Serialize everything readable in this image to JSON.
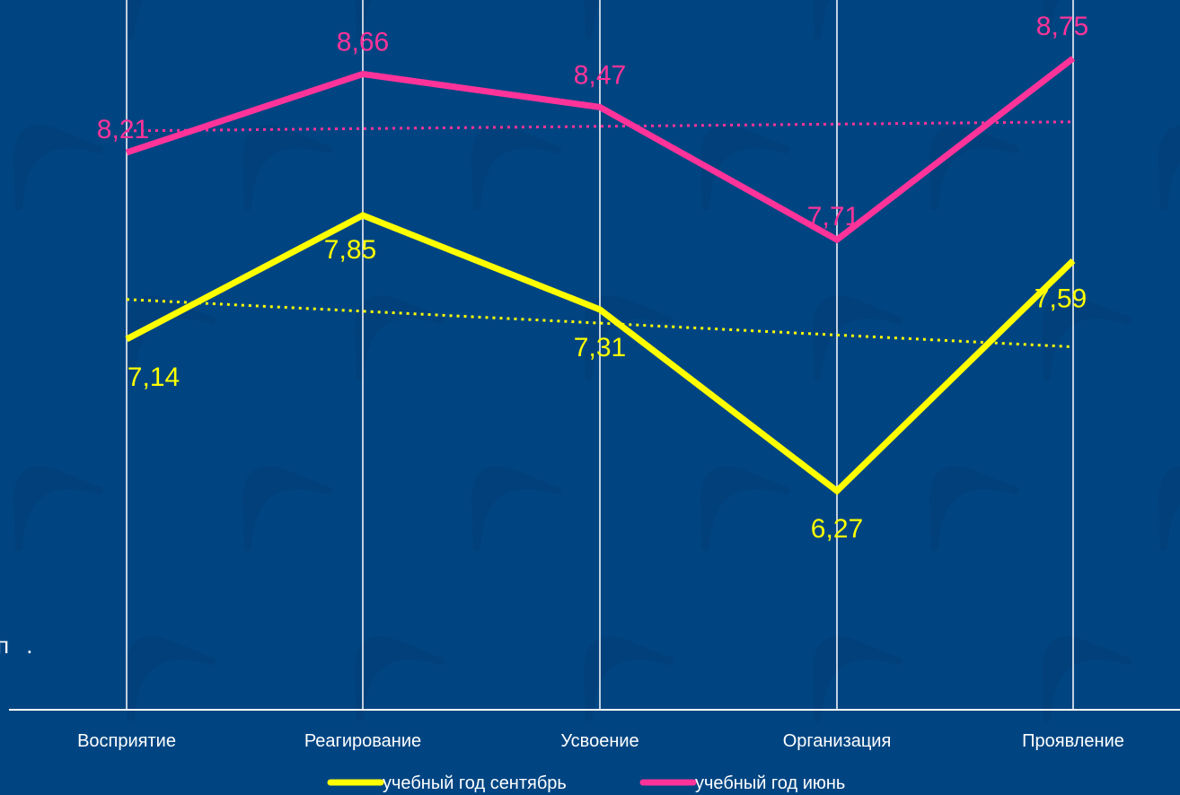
{
  "chart_data": {
    "type": "line",
    "categories": [
      "Восприятие",
      "Реагирование",
      "Усвоение",
      "Организация",
      "Проявление"
    ],
    "series": [
      {
        "name": "учебный год сентябрь",
        "values": [
          7.14,
          7.85,
          7.31,
          6.27,
          7.59
        ],
        "labels": [
          "7,14",
          "7,85",
          "7,31",
          "6,27",
          "7,59"
        ],
        "color": "#ffff00",
        "trendline": true
      },
      {
        "name": "учебный год июнь",
        "values": [
          8.21,
          8.66,
          8.47,
          7.71,
          8.75
        ],
        "labels": [
          "8,21",
          "8,66",
          "8,47",
          "7,71",
          "8,75"
        ],
        "color": "#ff3399",
        "trendline": true
      }
    ],
    "ylim": [
      4.15,
      9.0
    ],
    "grid": "vertical at categories",
    "legend": "bottom-center",
    "background_color": "#004582",
    "axis_color": "#ffffff",
    "stray_text": "п ."
  }
}
